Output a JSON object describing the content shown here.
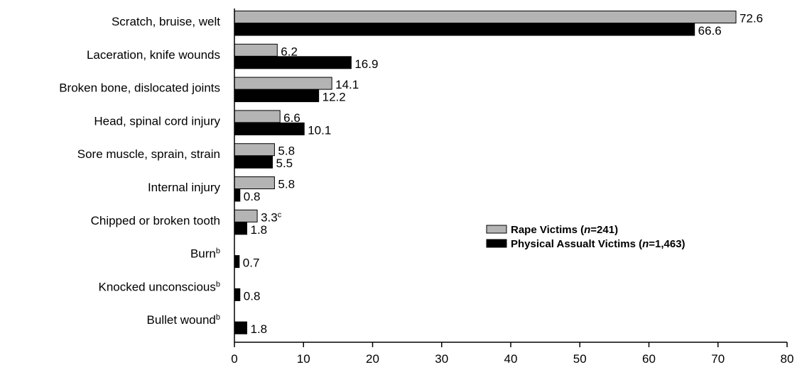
{
  "chart_data": {
    "type": "bar",
    "orientation": "horizontal",
    "categories": [
      {
        "label": "Scratch, bruise, welt",
        "sup": ""
      },
      {
        "label": "Laceration, knife wounds",
        "sup": ""
      },
      {
        "label": "Broken bone, dislocated joints",
        "sup": ""
      },
      {
        "label": "Head, spinal cord injury",
        "sup": ""
      },
      {
        "label": "Sore muscle, sprain, strain",
        "sup": ""
      },
      {
        "label": "Internal injury",
        "sup": ""
      },
      {
        "label": "Chipped or broken tooth",
        "sup": ""
      },
      {
        "label": "Burn",
        "sup": "b"
      },
      {
        "label": "Knocked unconscious",
        "sup": "b"
      },
      {
        "label": "Bullet wound",
        "sup": "b"
      }
    ],
    "series": [
      {
        "name_prefix": "Rape Victims (",
        "name_n": "n",
        "name_suffix": "=241)",
        "color": "#b4b4b4",
        "values": [
          72.6,
          6.2,
          14.1,
          6.6,
          5.8,
          5.8,
          3.3,
          null,
          null,
          null
        ],
        "value_labels": [
          "72.6",
          "6.2",
          "14.1",
          "6.6",
          "5.8",
          "5.8",
          "3.3",
          "",
          "",
          ""
        ],
        "value_sups": [
          "",
          "",
          "",
          "",
          "",
          "",
          "c",
          "",
          "",
          ""
        ]
      },
      {
        "name_prefix": "Physical Assualt Victims (",
        "name_n": "n",
        "name_suffix": "=1,463)",
        "color": "#000000",
        "values": [
          66.6,
          16.9,
          12.2,
          10.1,
          5.5,
          0.8,
          1.8,
          0.7,
          0.8,
          1.8
        ],
        "value_labels": [
          "66.6",
          "16.9",
          "12.2",
          "10.1",
          "5.5",
          "0.8",
          "1.8",
          "0.7",
          "0.8",
          "1.8"
        ],
        "value_sups": [
          "",
          "",
          "",
          "",
          "",
          "",
          "",
          "",
          "",
          ""
        ]
      }
    ],
    "xlim": [
      0,
      80
    ],
    "xticks": [
      0,
      10,
      20,
      30,
      40,
      50,
      60,
      70,
      80
    ],
    "xlabel": "",
    "ylabel": "",
    "title": "",
    "grid": false,
    "legend_position": "right"
  }
}
